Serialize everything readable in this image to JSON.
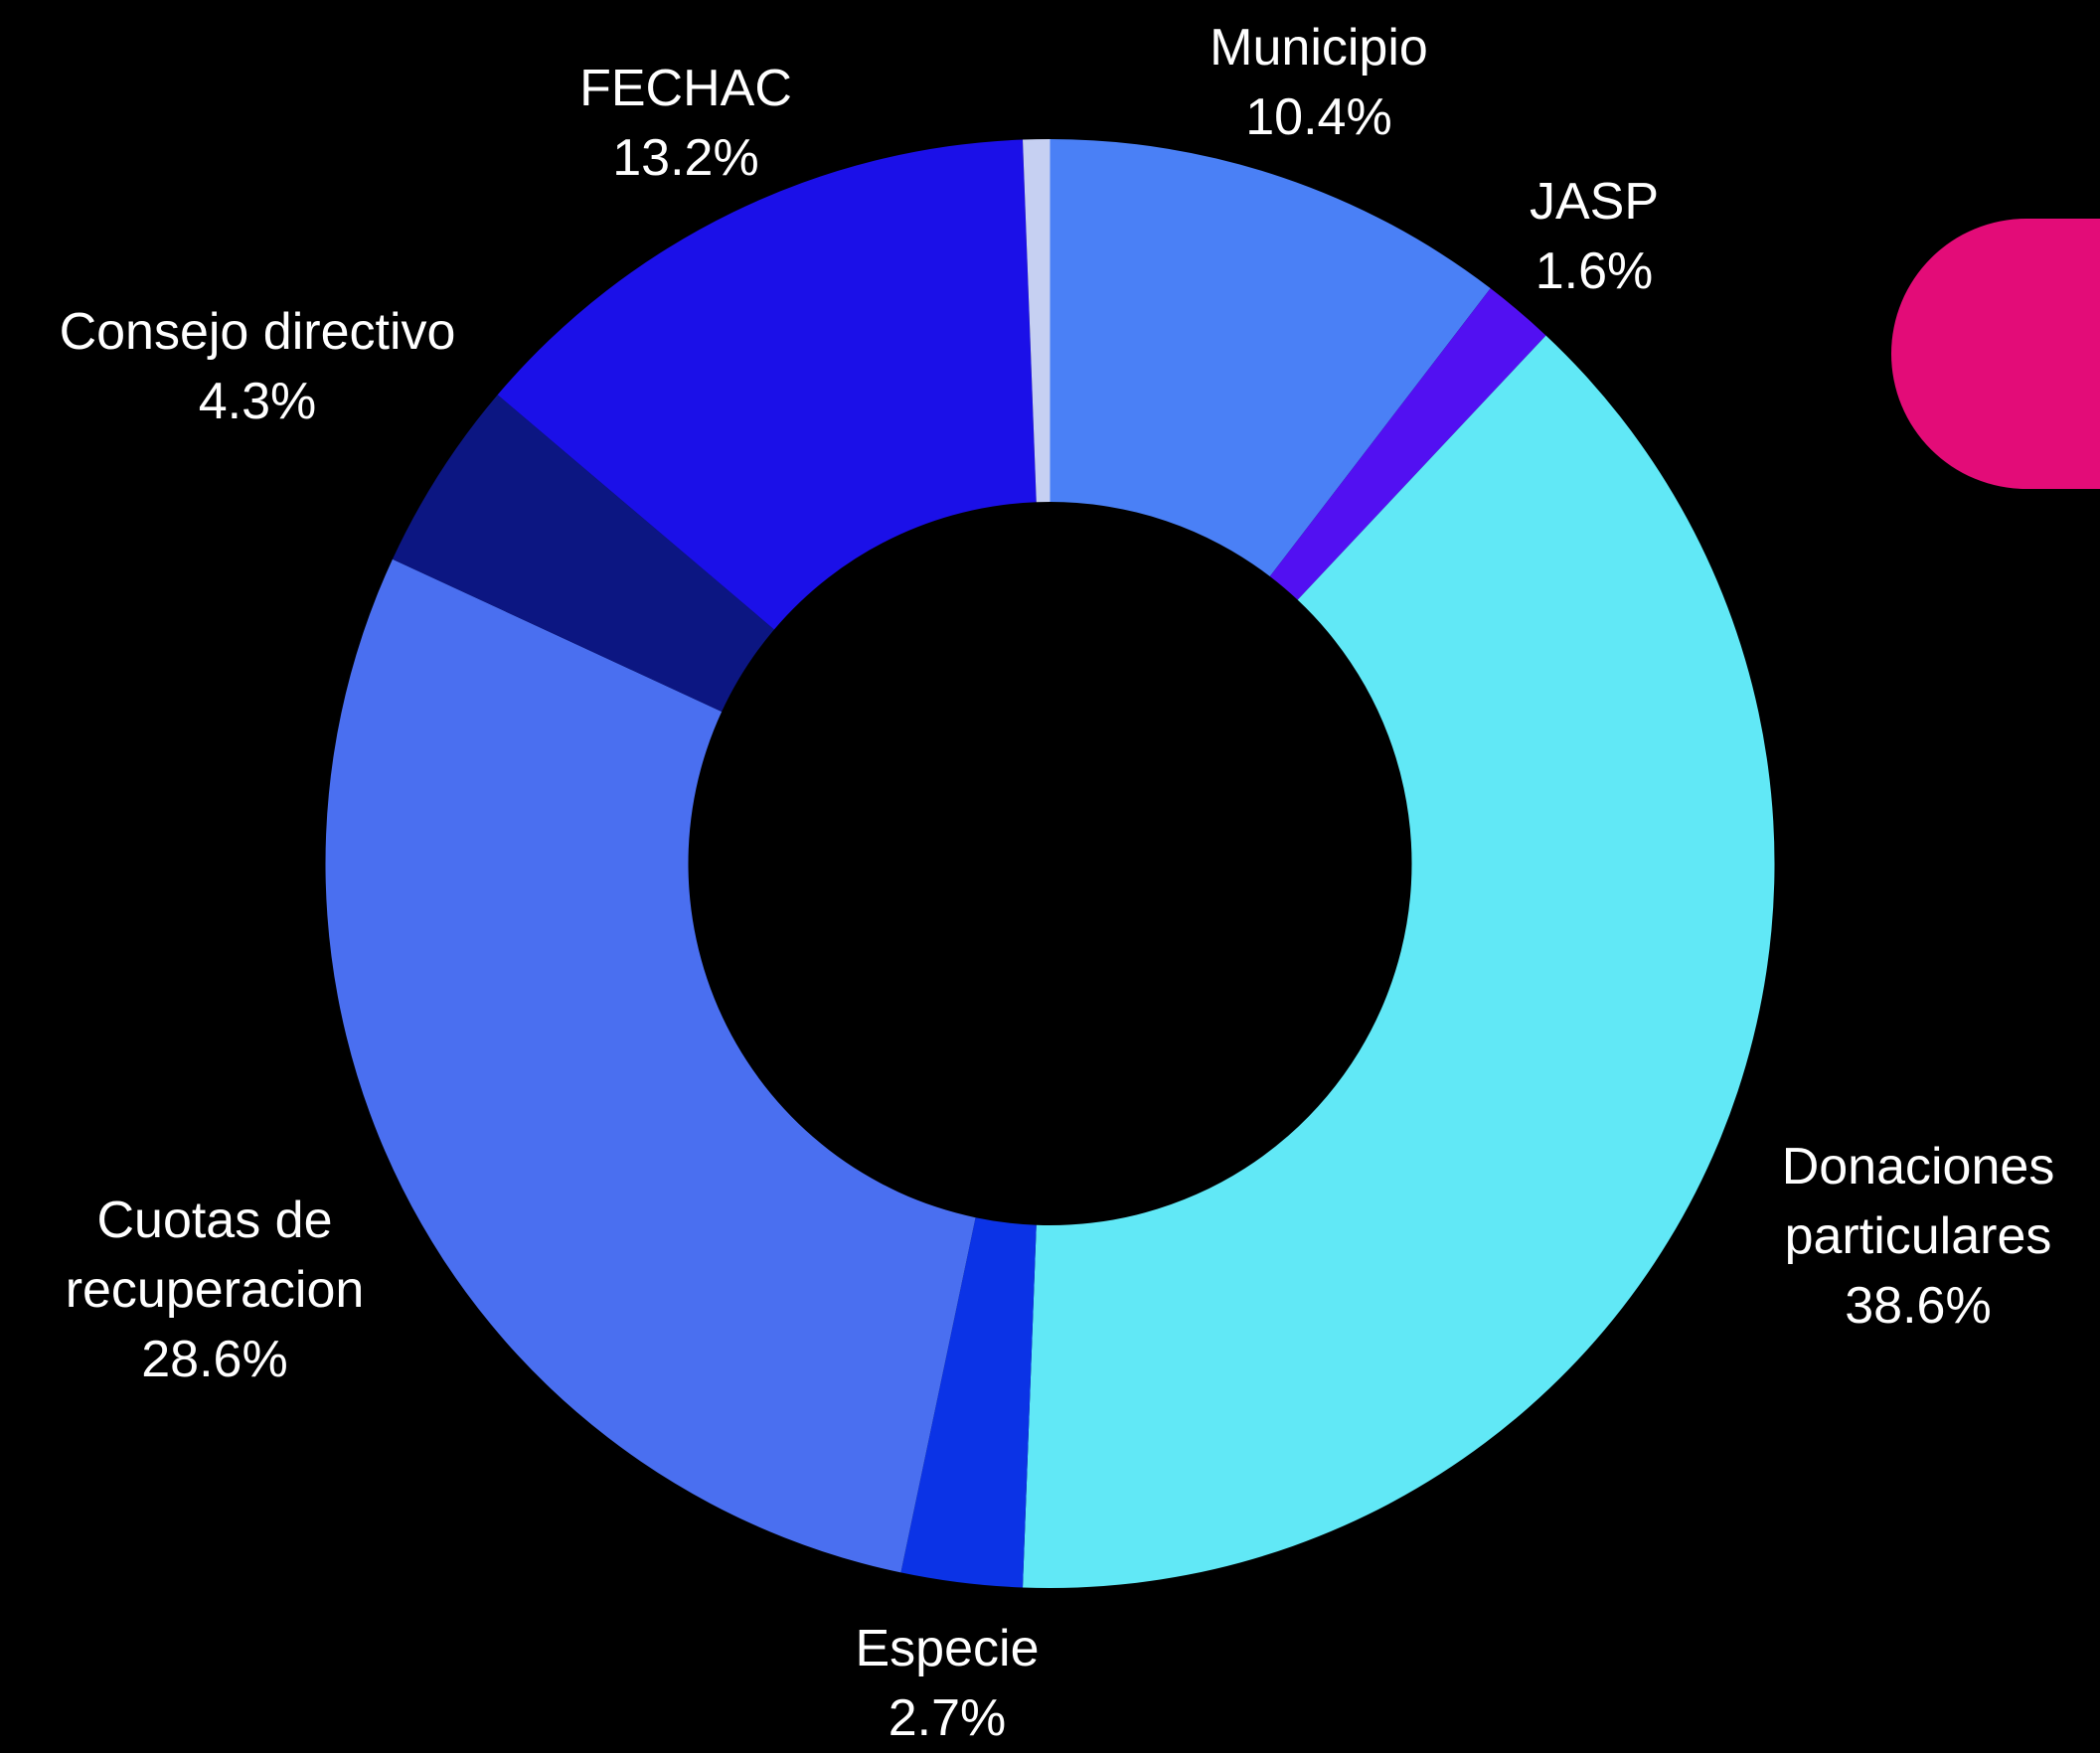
{
  "chart_data": {
    "type": "donut",
    "categories": [
      "Municipio",
      "JASP",
      "Donaciones particulares",
      "Especie",
      "Cuotas de recuperacion",
      "Consejo directivo",
      "FECHAC",
      null
    ],
    "values": [
      10.4,
      1.6,
      38.6,
      2.7,
      28.6,
      4.3,
      13.2,
      0.6
    ],
    "value_labels": [
      "10.4%",
      "1.6%",
      "38.6%",
      "2.7%",
      "28.6%",
      "4.3%",
      "13.2%",
      null
    ],
    "colors": [
      "#4a80f6",
      "#5210f2",
      "#61e8f6",
      "#0b33e6",
      "#4a6ff0",
      "#0c1682",
      "#1b10e8",
      "#c6d0f2"
    ]
  }
}
